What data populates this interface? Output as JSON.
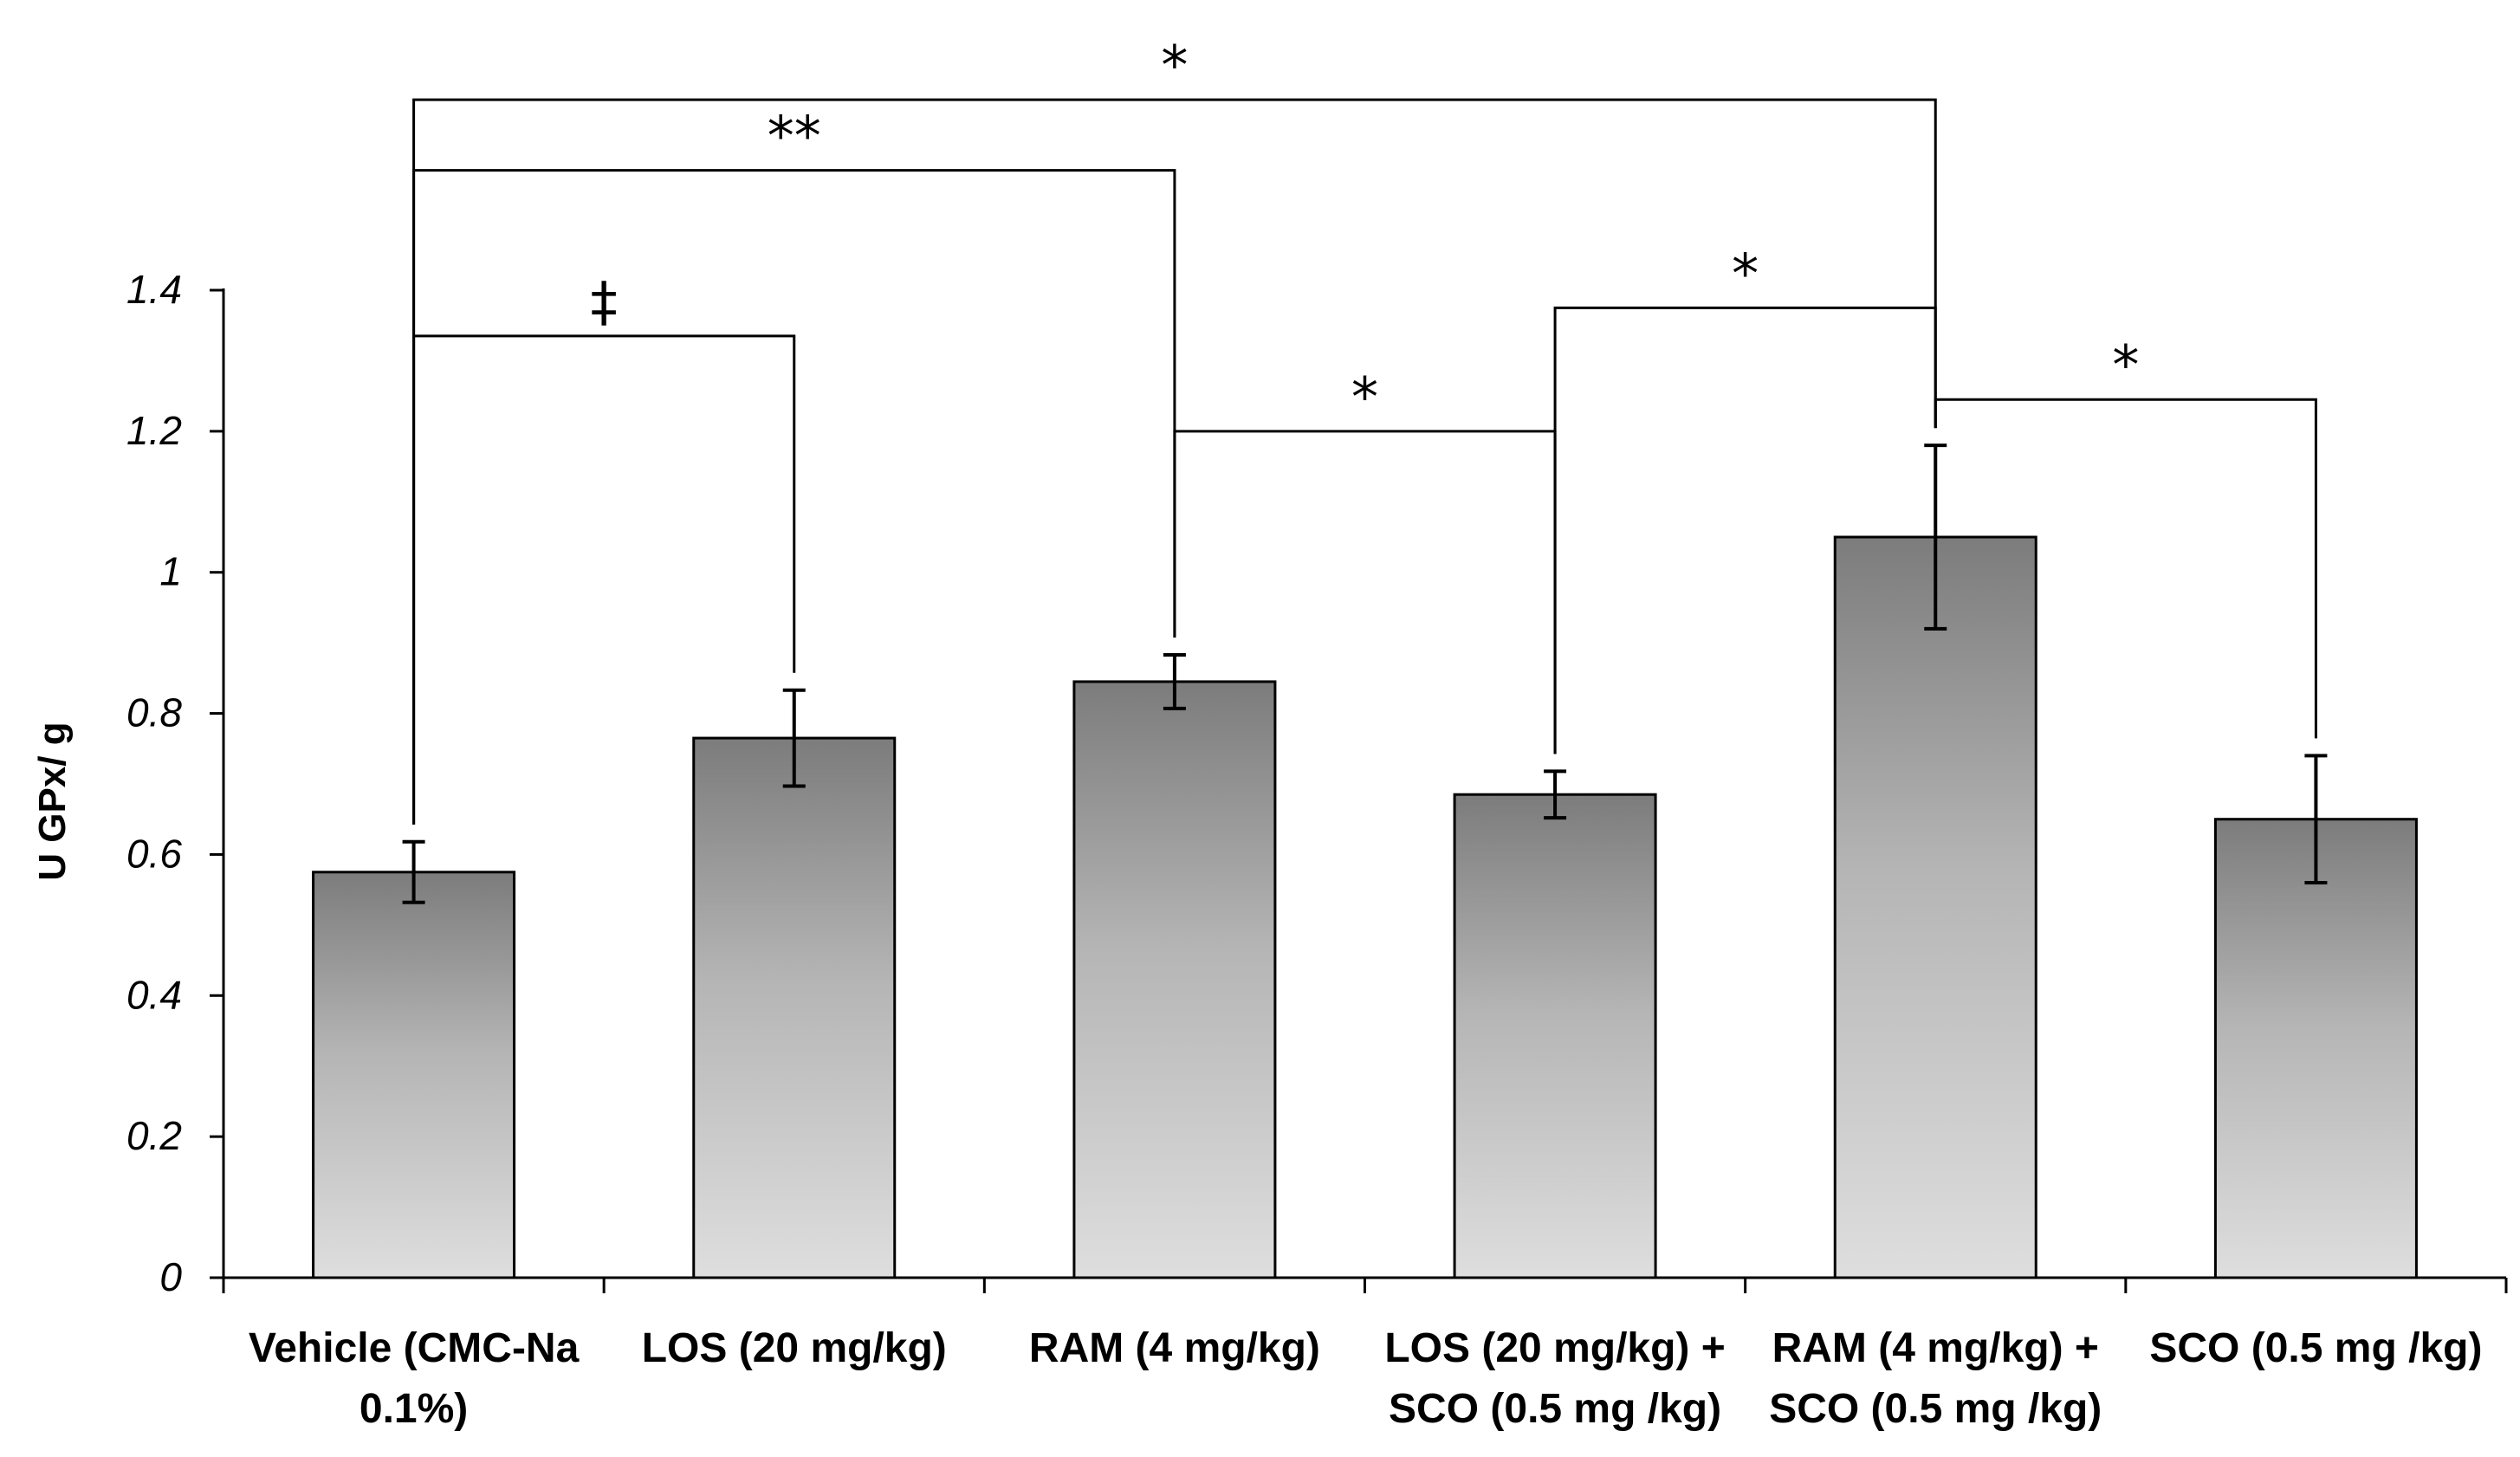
{
  "chart_data": {
    "type": "bar",
    "title": "",
    "xlabel": "",
    "ylabel": "U GPx/ g",
    "ylim": [
      0,
      1.4
    ],
    "yticks": [
      "0",
      "0.2",
      "0.4",
      "0.6",
      "0.8",
      "1",
      "1.2",
      "1.4"
    ],
    "grid": false,
    "categories": [
      [
        "Vehicle (CMC-Na",
        "0.1%)"
      ],
      [
        "LOS (20 mg/kg)"
      ],
      [
        "RAM (4 mg/kg)"
      ],
      [
        "LOS (20 mg/kg) +",
        "SCO (0.5 mg /kg)"
      ],
      [
        "RAM (4 mg/kg) +",
        "SCO (0.5 mg /kg)"
      ],
      [
        "SCO (0.5 mg /kg)"
      ]
    ],
    "values": [
      0.575,
      0.765,
      0.845,
      0.685,
      1.05,
      0.65
    ],
    "errors": [
      0.043,
      0.068,
      0.038,
      0.033,
      0.13,
      0.09
    ],
    "significance": [
      {
        "from": 0,
        "to": 4,
        "y": 1.67,
        "label": "*"
      },
      {
        "from": 0,
        "to": 2,
        "y": 1.57,
        "label": "**"
      },
      {
        "from": 0,
        "to": 1,
        "y": 1.335,
        "label": "‡"
      },
      {
        "from": 2,
        "to": 3,
        "y": 1.2,
        "label": "*"
      },
      {
        "from": 3,
        "to": 4,
        "y": 1.375,
        "label": "*"
      },
      {
        "from": 4,
        "to": 5,
        "y": 1.245,
        "label": "*"
      }
    ]
  }
}
